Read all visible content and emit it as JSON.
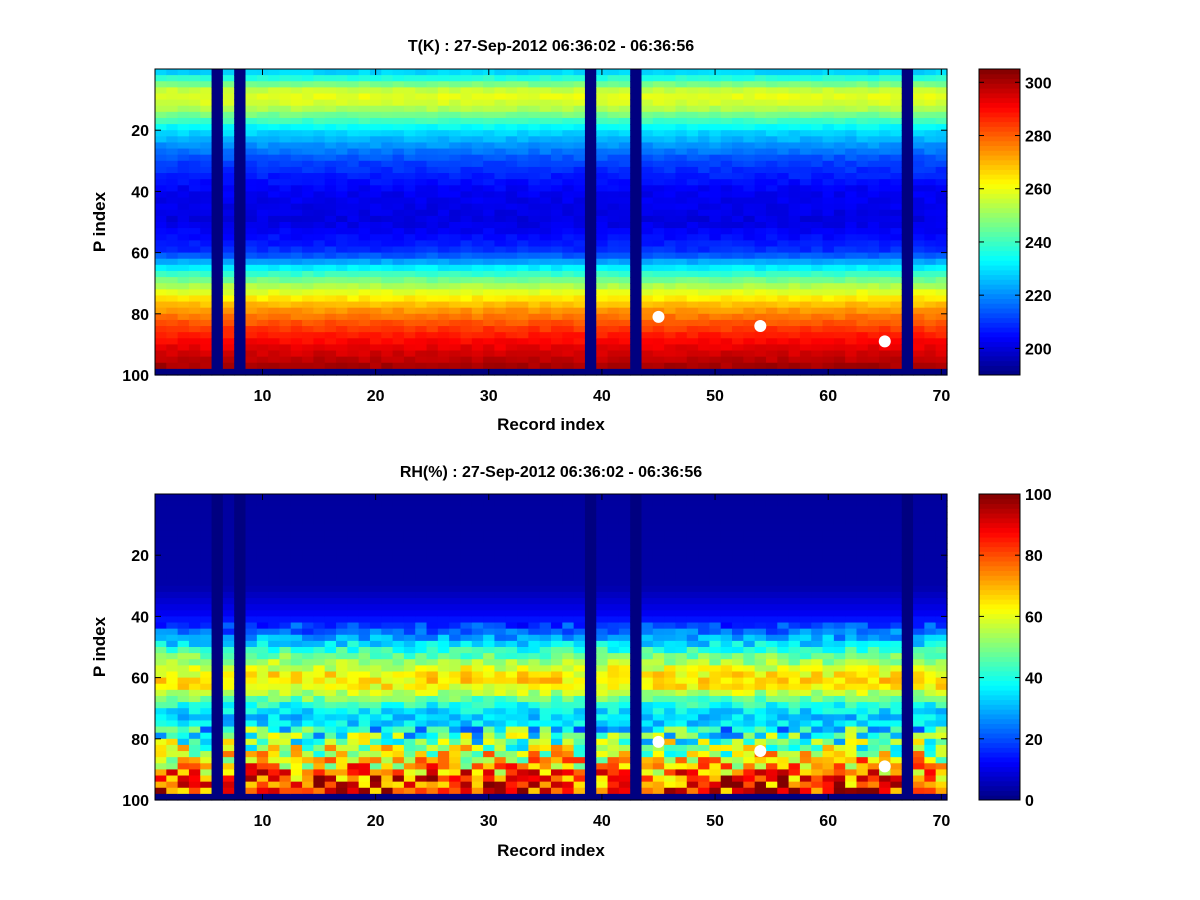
{
  "figure": {
    "background": "#ffffff"
  },
  "chart_data": [
    {
      "type": "heatmap",
      "title": "T(K) : 27-Sep-2012 06:36:02 - 06:36:56",
      "xlabel": "Record index",
      "ylabel": "P index",
      "x_range": [
        0.5,
        70.5
      ],
      "y_range": [
        0,
        100
      ],
      "y_reversed": true,
      "xticks": [
        10,
        20,
        30,
        40,
        50,
        60,
        70
      ],
      "yticks": [
        20,
        40,
        60,
        80,
        100
      ],
      "colormap": "jet",
      "clim": [
        190,
        305
      ],
      "colorbar_ticks": [
        200,
        220,
        240,
        260,
        280,
        300
      ],
      "missing_records": [
        6,
        8,
        39,
        43,
        67
      ],
      "missing_level": 98,
      "profile_vs_level": {
        "levels": [
          0,
          8,
          12,
          20,
          30,
          40,
          50,
          60,
          66,
          72,
          78,
          84,
          90,
          95,
          98
        ],
        "values": [
          224,
          260,
          256,
          230,
          212,
          203,
          201,
          210,
          236,
          256,
          272,
          283,
          292,
          298,
          302
        ]
      },
      "markers": [
        {
          "record": 45,
          "level": 81
        },
        {
          "record": 54,
          "level": 84
        },
        {
          "record": 65,
          "level": 89
        }
      ]
    },
    {
      "type": "heatmap",
      "title": "RH(%) : 27-Sep-2012 06:36:02 - 06:36:56",
      "xlabel": "Record index",
      "ylabel": "P index",
      "x_range": [
        0.5,
        70.5
      ],
      "y_range": [
        0,
        100
      ],
      "y_reversed": true,
      "xticks": [
        10,
        20,
        30,
        40,
        50,
        60,
        70
      ],
      "yticks": [
        20,
        40,
        60,
        80,
        100
      ],
      "colormap": "jet",
      "clim": [
        0,
        100
      ],
      "colorbar_ticks": [
        0,
        20,
        40,
        60,
        80,
        100
      ],
      "missing_records": [
        6,
        8,
        39,
        43,
        67
      ],
      "missing_level": 98,
      "profile_vs_level": {
        "levels": [
          0,
          30,
          40,
          46,
          52,
          58,
          62,
          66,
          70,
          74,
          80,
          86,
          92,
          98
        ],
        "values": [
          3,
          4,
          12,
          25,
          45,
          62,
          66,
          52,
          36,
          32,
          46,
          60,
          78,
          88
        ]
      },
      "markers": [
        {
          "record": 45,
          "level": 81
        },
        {
          "record": 54,
          "level": 84
        },
        {
          "record": 65,
          "level": 89
        }
      ]
    }
  ]
}
